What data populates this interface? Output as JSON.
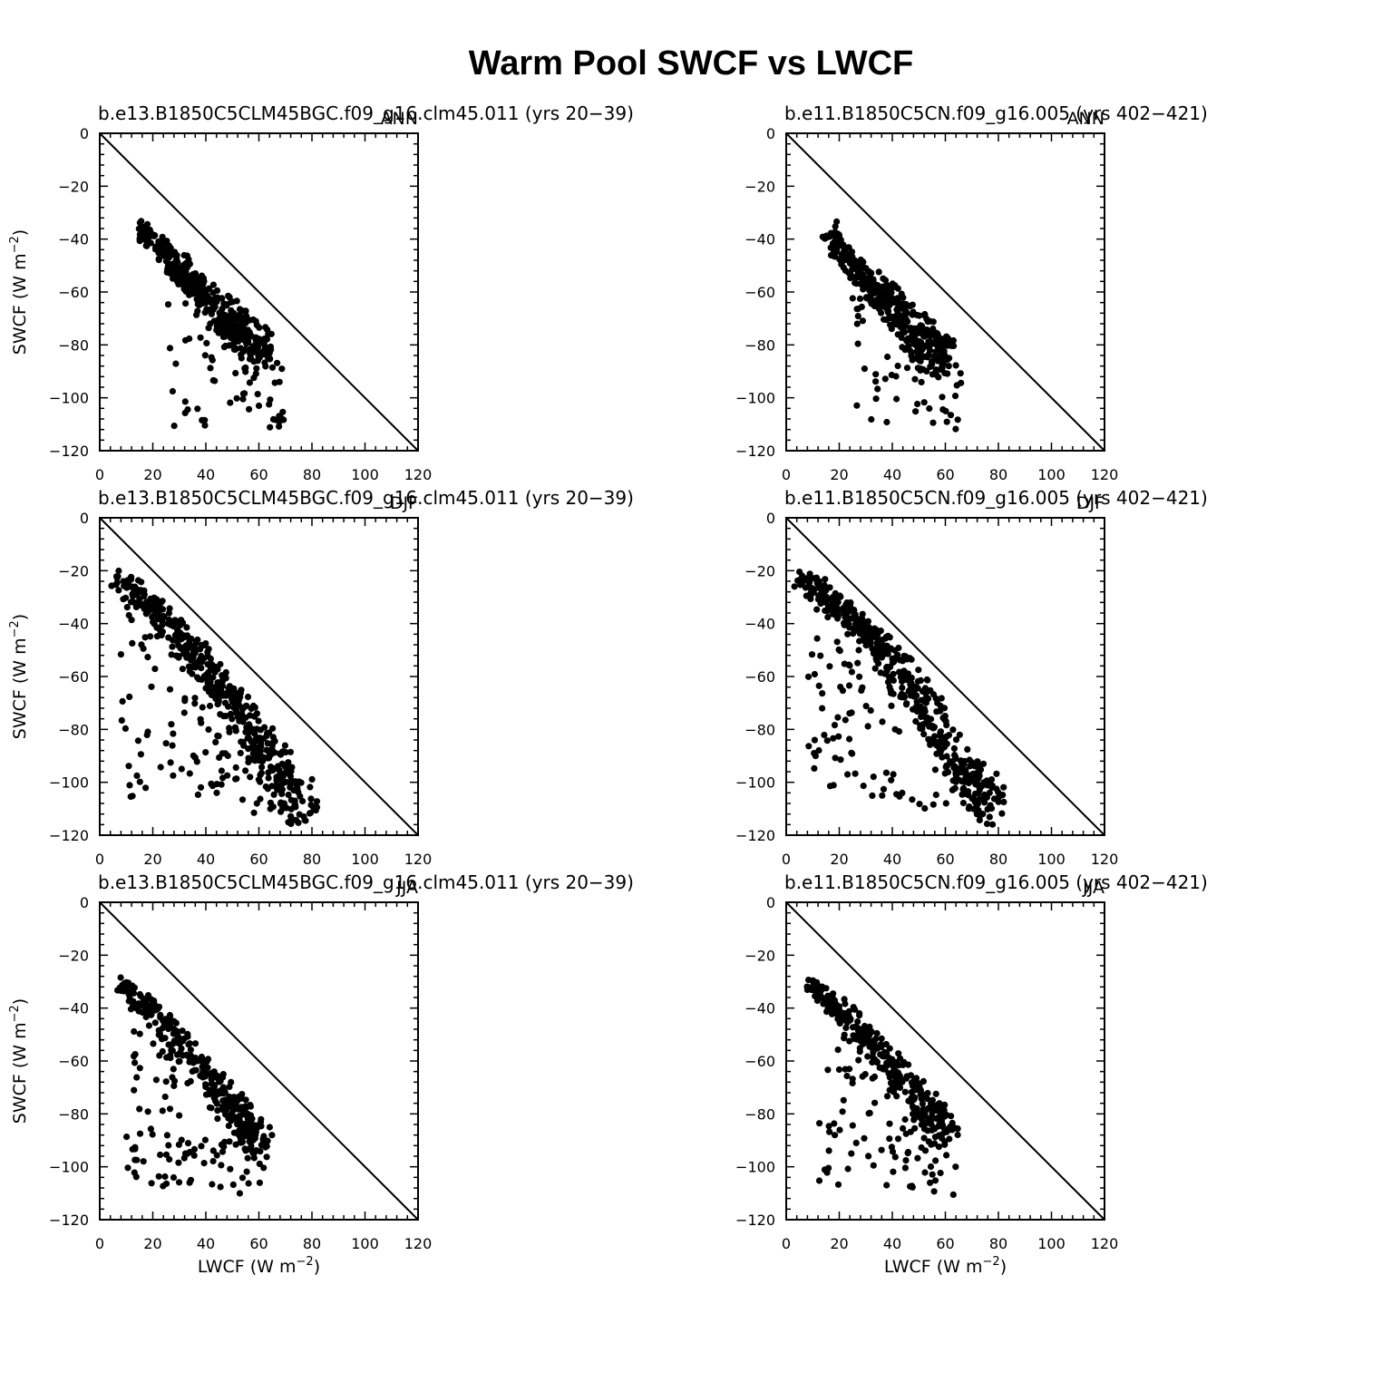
{
  "figure": {
    "title": "Warm Pool SWCF vs LWCF",
    "ylabel_base": "SWCF (W m",
    "xlabel_base": "LWCF (W m",
    "unit_exponent": "−2",
    "unit_close": ")",
    "colors": {
      "marker": "#000000",
      "axes": "#000000",
      "background": "#ffffff"
    }
  },
  "chart_data": [
    {
      "type": "scatter",
      "title": "b.e13.B1850C5CLM45BGC.f09_g16.clm45.011 (yrs 20−39)",
      "season": "ANN",
      "xlabel": "",
      "ylabel": "SWCF (W m−2)",
      "xlim": [
        0,
        120
      ],
      "ylim": [
        -120,
        0
      ],
      "xticks": [
        0,
        20,
        40,
        60,
        80,
        100,
        120
      ],
      "yticks": [
        0,
        -20,
        -40,
        -60,
        -80,
        -100,
        -120
      ],
      "reference_line": "y = -x",
      "point_cloud": {
        "spine": [
          [
            16,
            -35
          ],
          [
            25,
            -44
          ],
          [
            35,
            -56
          ],
          [
            45,
            -65
          ],
          [
            55,
            -75
          ],
          [
            60,
            -80
          ]
        ],
        "band_width": 5,
        "dense_count": 420,
        "scatter_count": 70,
        "scatter_x": [
          25,
          70
        ],
        "scatter_y": [
          -60,
          -120
        ]
      }
    },
    {
      "type": "scatter",
      "title": "b.e11.B1850C5CN.f09_g16.005 (yrs 402−421)",
      "season": "ANN",
      "xlabel": "",
      "ylabel": "",
      "xlim": [
        0,
        120
      ],
      "ylim": [
        -120,
        0
      ],
      "xticks": [
        0,
        20,
        40,
        60,
        80,
        100,
        120
      ],
      "yticks": [
        0,
        -20,
        -40,
        -60,
        -80,
        -100,
        -120
      ],
      "reference_line": "y = -x",
      "point_cloud": {
        "spine": [
          [
            16,
            -35
          ],
          [
            24,
            -48
          ],
          [
            34,
            -58
          ],
          [
            44,
            -67
          ],
          [
            54,
            -77
          ],
          [
            58,
            -83
          ]
        ],
        "band_width": 5,
        "dense_count": 420,
        "scatter_count": 60,
        "scatter_x": [
          25,
          66
        ],
        "scatter_y": [
          -62,
          -120
        ]
      }
    },
    {
      "type": "scatter",
      "title": "b.e13.B1850C5CLM45BGC.f09_g16.clm45.011 (yrs 20−39)",
      "season": "DJF",
      "xlabel": "",
      "ylabel": "SWCF (W m−2)",
      "xlim": [
        0,
        120
      ],
      "ylim": [
        -120,
        0
      ],
      "xticks": [
        0,
        20,
        40,
        60,
        80,
        100,
        120
      ],
      "yticks": [
        0,
        -20,
        -40,
        -60,
        -80,
        -100,
        -120
      ],
      "reference_line": "y = -x",
      "point_cloud": {
        "spine": [
          [
            6,
            -20
          ],
          [
            20,
            -32
          ],
          [
            35,
            -48
          ],
          [
            50,
            -67
          ],
          [
            65,
            -90
          ],
          [
            78,
            -108
          ]
        ],
        "band_width": 5,
        "dense_count": 450,
        "scatter_count": 150,
        "scatter_x": [
          8,
          80
        ],
        "scatter_y": [
          -25,
          -120
        ]
      }
    },
    {
      "type": "scatter",
      "title": "b.e11.B1850C5CN.f09_g16.005 (yrs 402−421)",
      "season": "DJF",
      "xlabel": "",
      "ylabel": "",
      "xlim": [
        0,
        120
      ],
      "ylim": [
        -120,
        0
      ],
      "xticks": [
        0,
        20,
        40,
        60,
        80,
        100,
        120
      ],
      "yticks": [
        0,
        -20,
        -40,
        -60,
        -80,
        -100,
        -120
      ],
      "reference_line": "y = -x",
      "point_cloud": {
        "spine": [
          [
            5,
            -21
          ],
          [
            20,
            -33
          ],
          [
            35,
            -46
          ],
          [
            50,
            -65
          ],
          [
            65,
            -90
          ],
          [
            78,
            -110
          ]
        ],
        "band_width": 5,
        "dense_count": 450,
        "scatter_count": 140,
        "scatter_x": [
          8,
          80
        ],
        "scatter_y": [
          -25,
          -120
        ]
      }
    },
    {
      "type": "scatter",
      "title": "b.e13.B1850C5CLM45BGC.f09_g16.clm45.011 (yrs 20−39)",
      "season": "JJA",
      "xlabel": "LWCF (W m−2)",
      "ylabel": "SWCF (W m−2)",
      "xlim": [
        0,
        120
      ],
      "ylim": [
        -120,
        0
      ],
      "xticks": [
        0,
        20,
        40,
        60,
        80,
        100,
        120
      ],
      "yticks": [
        0,
        -20,
        -40,
        -60,
        -80,
        -100,
        -120
      ],
      "reference_line": "y = -x",
      "point_cloud": {
        "spine": [
          [
            8,
            -30
          ],
          [
            20,
            -40
          ],
          [
            35,
            -57
          ],
          [
            50,
            -75
          ],
          [
            60,
            -88
          ]
        ],
        "band_width": 4,
        "dense_count": 320,
        "scatter_count": 130,
        "scatter_x": [
          10,
          62
        ],
        "scatter_y": [
          -40,
          -120
        ]
      }
    },
    {
      "type": "scatter",
      "title": "b.e11.B1850C5CN.f09_g16.005 (yrs 402−421)",
      "season": "JJA",
      "xlabel": "LWCF (W m−2)",
      "ylabel": "",
      "xlim": [
        0,
        120
      ],
      "ylim": [
        -120,
        0
      ],
      "xticks": [
        0,
        20,
        40,
        60,
        80,
        100,
        120
      ],
      "yticks": [
        0,
        -20,
        -40,
        -60,
        -80,
        -100,
        -120
      ],
      "reference_line": "y = -x",
      "point_cloud": {
        "spine": [
          [
            9,
            -30
          ],
          [
            20,
            -40
          ],
          [
            35,
            -55
          ],
          [
            50,
            -72
          ],
          [
            60,
            -86
          ]
        ],
        "band_width": 4,
        "dense_count": 320,
        "scatter_count": 120,
        "scatter_x": [
          12,
          64
        ],
        "scatter_y": [
          -40,
          -120
        ]
      }
    }
  ]
}
